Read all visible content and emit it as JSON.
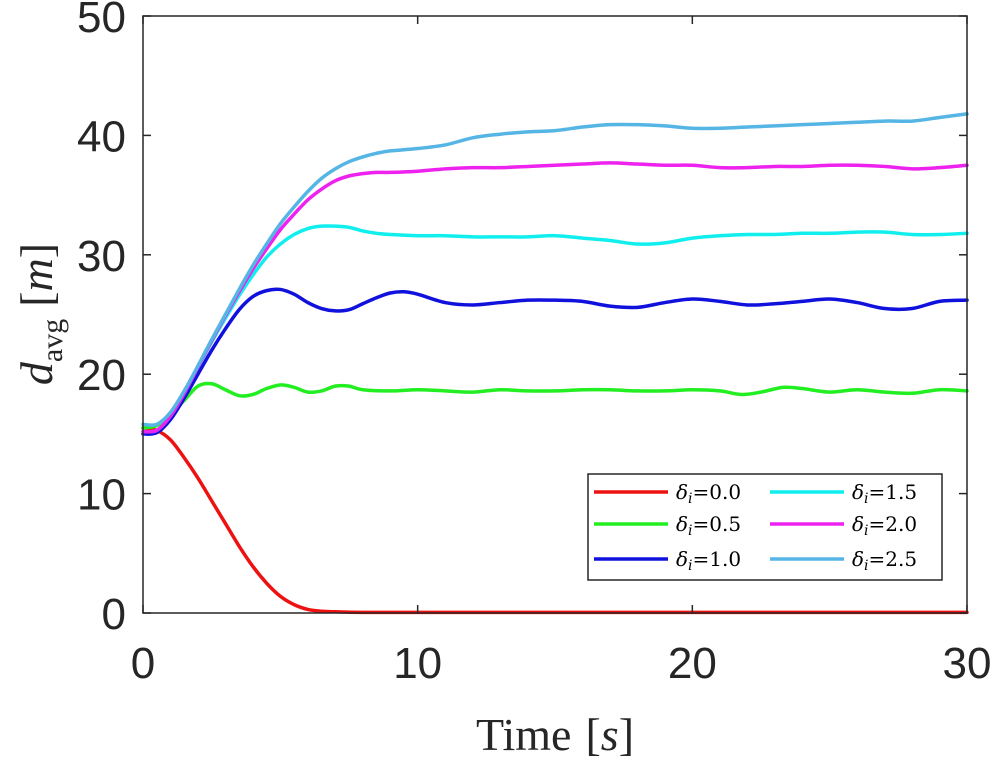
{
  "chart_data": {
    "type": "line",
    "title": "",
    "xlabel": "Time [s]",
    "xlabel_main": "Time",
    "xlabel_unit": "s",
    "ylabel_base": "d",
    "ylabel_sub": "avg",
    "ylabel_unit": "m",
    "xlim": [
      0,
      30
    ],
    "ylim": [
      0,
      50
    ],
    "xticks": [
      0,
      10,
      20,
      30
    ],
    "yticks": [
      0,
      10,
      20,
      30,
      40,
      50
    ],
    "xtick_labels": [
      "0",
      "10",
      "20",
      "30"
    ],
    "ytick_labels": [
      "0",
      "10",
      "20",
      "30",
      "40",
      "50"
    ],
    "grid": false,
    "legend_position": "lower-right",
    "legend_symbol": "δ",
    "legend_sub": "i",
    "series": [
      {
        "name": "δi=0.0",
        "value_label": "=0.0",
        "color": "#ee1111",
        "x": [
          0,
          0.5,
          1,
          1.5,
          2,
          2.5,
          3,
          3.5,
          4,
          4.5,
          5,
          5.5,
          6,
          6.5,
          7,
          8,
          10,
          15,
          20,
          25,
          30
        ],
        "y": [
          15.5,
          15.3,
          14.5,
          13.0,
          11.3,
          9.4,
          7.5,
          5.6,
          3.9,
          2.5,
          1.4,
          0.7,
          0.3,
          0.15,
          0.1,
          0.05,
          0.05,
          0.05,
          0.05,
          0.05,
          0.05
        ]
      },
      {
        "name": "δi=0.5",
        "value_label": "=0.5",
        "color": "#22ee22",
        "x": [
          0,
          0.5,
          1,
          1.5,
          2,
          2.5,
          3,
          3.5,
          4,
          4.5,
          5,
          5.5,
          6,
          6.5,
          7,
          7.5,
          8,
          9,
          10,
          11,
          12,
          13,
          14,
          15,
          16,
          17,
          18,
          19,
          20,
          21,
          21.8,
          22.5,
          23.3,
          24,
          25,
          26,
          27,
          28,
          29,
          30
        ],
        "y": [
          15.5,
          15.7,
          16.6,
          17.8,
          19.0,
          19.2,
          18.7,
          18.2,
          18.3,
          18.8,
          19.1,
          18.9,
          18.5,
          18.6,
          19.0,
          19.0,
          18.7,
          18.6,
          18.7,
          18.6,
          18.5,
          18.7,
          18.6,
          18.6,
          18.7,
          18.7,
          18.6,
          18.6,
          18.7,
          18.6,
          18.3,
          18.5,
          18.9,
          18.8,
          18.5,
          18.7,
          18.5,
          18.4,
          18.7,
          18.6
        ]
      },
      {
        "name": "δi=1.0",
        "value_label": "=1.0",
        "color": "#1111dd",
        "x": [
          0,
          0.5,
          1,
          1.5,
          2,
          2.5,
          3,
          3.5,
          4,
          4.5,
          5,
          5.5,
          6,
          6.5,
          7,
          7.5,
          8,
          8.5,
          9,
          9.5,
          10,
          11,
          12,
          13,
          14,
          15,
          16,
          17,
          18,
          19,
          20,
          21,
          22,
          23,
          24,
          25,
          26,
          27,
          28,
          29,
          30
        ],
        "y": [
          15.0,
          15.1,
          16.2,
          18.0,
          20.0,
          22.0,
          23.8,
          25.4,
          26.5,
          27.0,
          27.1,
          26.7,
          26.0,
          25.5,
          25.3,
          25.4,
          25.9,
          26.4,
          26.8,
          26.9,
          26.7,
          26.0,
          25.8,
          26.0,
          26.2,
          26.2,
          26.1,
          25.7,
          25.6,
          26.0,
          26.3,
          26.1,
          25.8,
          25.9,
          26.1,
          26.3,
          26.0,
          25.5,
          25.5,
          26.1,
          26.2
        ]
      },
      {
        "name": "δi=1.5",
        "value_label": "=1.5",
        "color": "#11eeee",
        "x": [
          0,
          0.5,
          1,
          1.5,
          2,
          2.5,
          3,
          3.5,
          4,
          4.5,
          5,
          5.5,
          6,
          6.5,
          7,
          7.5,
          8,
          8.5,
          9,
          10,
          11,
          12,
          13,
          14,
          15,
          16,
          17,
          18,
          19,
          20,
          21,
          22,
          23,
          24,
          25,
          26,
          27,
          28,
          29,
          30
        ],
        "y": [
          15.2,
          15.3,
          16.5,
          18.4,
          20.6,
          22.7,
          24.7,
          26.6,
          28.3,
          29.8,
          30.9,
          31.7,
          32.2,
          32.4,
          32.4,
          32.3,
          32.0,
          31.8,
          31.7,
          31.6,
          31.6,
          31.5,
          31.5,
          31.5,
          31.6,
          31.4,
          31.2,
          30.9,
          31.0,
          31.4,
          31.6,
          31.7,
          31.7,
          31.8,
          31.8,
          31.9,
          31.9,
          31.7,
          31.7,
          31.8
        ]
      },
      {
        "name": "δi=2.0",
        "value_label": "=2.0",
        "color": "#ee22ee",
        "x": [
          0,
          0.5,
          1,
          1.5,
          2,
          2.5,
          3,
          3.5,
          4,
          4.5,
          5,
          5.5,
          6,
          6.5,
          7,
          7.5,
          8,
          8.5,
          9,
          10,
          11,
          12,
          13,
          14,
          15,
          16,
          17,
          18,
          19,
          20,
          21,
          22,
          23,
          24,
          25,
          26,
          27,
          28,
          29,
          30
        ],
        "y": [
          15.2,
          15.3,
          16.5,
          18.4,
          20.6,
          22.8,
          24.9,
          26.9,
          28.8,
          30.5,
          32.1,
          33.4,
          34.6,
          35.5,
          36.2,
          36.6,
          36.8,
          36.9,
          36.9,
          37.0,
          37.2,
          37.3,
          37.3,
          37.4,
          37.5,
          37.6,
          37.7,
          37.6,
          37.5,
          37.5,
          37.3,
          37.3,
          37.4,
          37.4,
          37.5,
          37.5,
          37.4,
          37.2,
          37.3,
          37.5
        ]
      },
      {
        "name": "δi=2.5",
        "value_label": "=2.5",
        "color": "#55b5e5",
        "x": [
          0,
          0.5,
          1,
          1.5,
          2,
          2.5,
          3,
          3.5,
          4,
          4.5,
          5,
          5.5,
          6,
          6.5,
          7,
          7.5,
          8,
          8.5,
          9,
          10,
          11,
          12,
          13,
          14,
          15,
          16,
          17,
          18,
          19,
          20,
          21,
          22,
          23,
          24,
          25,
          26,
          27,
          28,
          29,
          30
        ],
        "y": [
          15.8,
          15.8,
          16.8,
          18.6,
          20.7,
          22.9,
          25.0,
          27.1,
          29.1,
          30.9,
          32.6,
          34.0,
          35.3,
          36.4,
          37.2,
          37.8,
          38.2,
          38.5,
          38.7,
          38.9,
          39.2,
          39.8,
          40.1,
          40.3,
          40.4,
          40.7,
          40.9,
          40.9,
          40.8,
          40.6,
          40.6,
          40.7,
          40.8,
          40.9,
          41.0,
          41.1,
          41.2,
          41.2,
          41.5,
          41.8
        ]
      }
    ]
  }
}
